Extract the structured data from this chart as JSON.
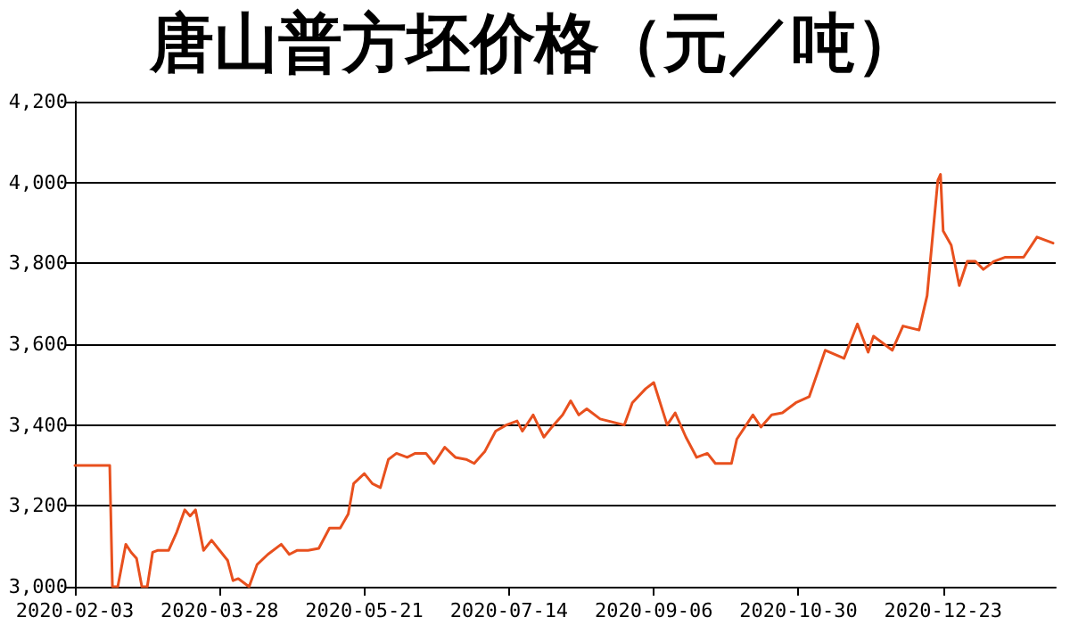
{
  "chart_data": {
    "type": "line",
    "title": "唐山普方坯价格（元／吨）",
    "x": [
      "2020-02-03",
      "2020-02-16",
      "2020-02-17",
      "2020-02-19",
      "2020-02-22",
      "2020-02-24",
      "2020-02-26",
      "2020-02-28",
      "2020-03-01",
      "2020-03-03",
      "2020-03-05",
      "2020-03-09",
      "2020-03-12",
      "2020-03-15",
      "2020-03-17",
      "2020-03-19",
      "2020-03-22",
      "2020-03-25",
      "2020-03-28",
      "2020-03-31",
      "2020-04-02",
      "2020-04-04",
      "2020-04-06",
      "2020-04-08",
      "2020-04-11",
      "2020-04-15",
      "2020-04-20",
      "2020-04-23",
      "2020-04-26",
      "2020-04-30",
      "2020-05-04",
      "2020-05-08",
      "2020-05-12",
      "2020-05-15",
      "2020-05-17",
      "2020-05-21",
      "2020-05-24",
      "2020-05-27",
      "2020-05-30",
      "2020-06-02",
      "2020-06-06",
      "2020-06-09",
      "2020-06-13",
      "2020-06-16",
      "2020-06-20",
      "2020-06-24",
      "2020-06-28",
      "2020-07-01",
      "2020-07-05",
      "2020-07-09",
      "2020-07-13",
      "2020-07-17",
      "2020-07-19",
      "2020-07-23",
      "2020-07-27",
      "2020-07-30",
      "2020-08-03",
      "2020-08-06",
      "2020-08-09",
      "2020-08-12",
      "2020-08-17",
      "2020-08-26",
      "2020-08-29",
      "2020-09-03",
      "2020-09-06",
      "2020-09-11",
      "2020-09-14",
      "2020-09-18",
      "2020-09-22",
      "2020-09-26",
      "2020-09-29",
      "2020-10-05",
      "2020-10-07",
      "2020-10-13",
      "2020-10-16",
      "2020-10-20",
      "2020-10-24",
      "2020-10-29",
      "2020-11-03",
      "2020-11-09",
      "2020-11-16",
      "2020-11-21",
      "2020-11-25",
      "2020-11-27",
      "2020-12-04",
      "2020-12-08",
      "2020-12-14",
      "2020-12-17",
      "2020-12-21",
      "2020-12-22",
      "2020-12-23",
      "2020-12-26",
      "2020-12-29",
      "2021-01-01",
      "2021-01-04",
      "2021-01-07",
      "2021-01-11",
      "2021-01-15",
      "2021-01-22",
      "2021-01-24",
      "2021-01-27",
      "2021-01-31",
      "2021-02-02"
    ],
    "series": [
      {
        "color": "#e8501e",
        "values": [
          3300,
          3300,
          3000,
          3000,
          3105,
          3085,
          3070,
          3000,
          3000,
          3085,
          3090,
          3090,
          3135,
          3190,
          3175,
          3190,
          3090,
          3115,
          3090,
          3065,
          3015,
          3020,
          3010,
          3000,
          3055,
          3080,
          3105,
          3080,
          3090,
          3090,
          3095,
          3145,
          3145,
          3180,
          3255,
          3280,
          3255,
          3245,
          3315,
          3330,
          3320,
          3330,
          3330,
          3305,
          3345,
          3320,
          3315,
          3305,
          3335,
          3385,
          3400,
          3410,
          3385,
          3425,
          3370,
          3395,
          3425,
          3460,
          3425,
          3440,
          3415,
          3400,
          3455,
          3490,
          3505,
          3400,
          3430,
          3370,
          3320,
          3330,
          3305,
          3305,
          3365,
          3425,
          3395,
          3425,
          3430,
          3455,
          3470,
          3585,
          3565,
          3650,
          3580,
          3620,
          3585,
          3645,
          3635,
          3720,
          4005,
          4020,
          3880,
          3845,
          3745,
          3805,
          3805,
          3785,
          3805,
          3815,
          3815,
          3835,
          3865,
          3855,
          3850
        ]
      }
    ],
    "xlim": [
      "2020-02-03",
      "2021-02-03"
    ],
    "xticks": [
      "2020-02-03",
      "2020-03-28",
      "2020-05-21",
      "2020-07-14",
      "2020-09-06",
      "2020-10-30",
      "2020-12-23"
    ],
    "ylim": [
      3000,
      4200
    ],
    "yticks": [
      {
        "value": 3000,
        "label": "3,000"
      },
      {
        "value": 3200,
        "label": "3,200"
      },
      {
        "value": 3400,
        "label": "3,400"
      },
      {
        "value": 3600,
        "label": "3,600"
      },
      {
        "value": 3800,
        "label": "3,800"
      },
      {
        "value": 4000,
        "label": "4,000"
      },
      {
        "value": 4200,
        "label": "4,200"
      }
    ],
    "grid": "y",
    "marker": "none",
    "line_style": "solid"
  }
}
